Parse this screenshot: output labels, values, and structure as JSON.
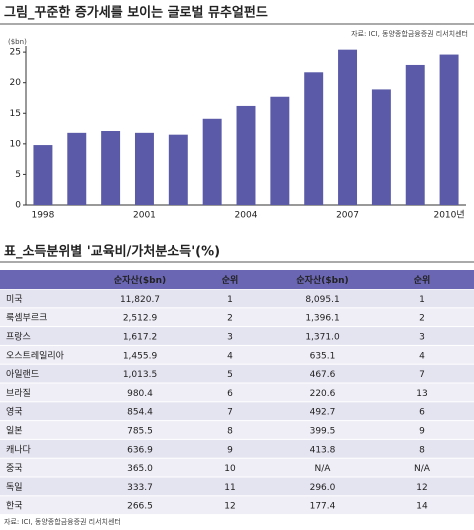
{
  "chart_data": {
    "type": "bar",
    "title": "그림_꾸준한 증가세를 보이는 글로벌 뮤추얼펀드",
    "source": "자료: ICI, 동양종합금융증권 리서치센터",
    "y_label": "($bn)",
    "categories": [
      "1998",
      null,
      null,
      "2001",
      null,
      null,
      "2004",
      null,
      null,
      "2007",
      null,
      null,
      "2010년"
    ],
    "values": [
      9.8,
      11.8,
      12.1,
      11.8,
      11.5,
      14.1,
      16.2,
      17.7,
      21.7,
      25.4,
      18.9,
      22.9,
      24.6
    ],
    "color": "#5a5aa8",
    "ylim": [
      0,
      26
    ],
    "yticks": [
      0,
      5,
      10,
      15,
      20,
      25
    ],
    "grid": false
  },
  "table": {
    "title": "표_소득분위별 '교육비/가처분소득'(%)",
    "header": [
      "순자산($bn)",
      "순위",
      "순자산($bn)",
      "순위"
    ],
    "rows": [
      [
        "미국",
        "11,820.7",
        "1",
        "8,095.1",
        "1"
      ],
      [
        "룩셈부르크",
        "2,512.9",
        "2",
        "1,396.1",
        "2"
      ],
      [
        "프랑스",
        "1,617.2",
        "3",
        "1,371.0",
        "3"
      ],
      [
        "오스트레일리아",
        "1,455.9",
        "4",
        "635.1",
        "4"
      ],
      [
        "아일랜드",
        "1,013.5",
        "5",
        "467.6",
        "7"
      ],
      [
        "브라질",
        "980.4",
        "6",
        "220.6",
        "13"
      ],
      [
        "영국",
        "854.4",
        "7",
        "492.7",
        "6"
      ],
      [
        "일본",
        "785.5",
        "8",
        "399.5",
        "9"
      ],
      [
        "캐나다",
        "636.9",
        "9",
        "413.8",
        "8"
      ],
      [
        "중국",
        "365.0",
        "10",
        "N/A",
        "N/A"
      ],
      [
        "독일",
        "333.7",
        "11",
        "296.0",
        "12"
      ],
      [
        "한국",
        "266.5",
        "12",
        "177.4",
        "14"
      ]
    ],
    "source": "자료: ICI, 동양종합금융증권 리서치센터"
  }
}
